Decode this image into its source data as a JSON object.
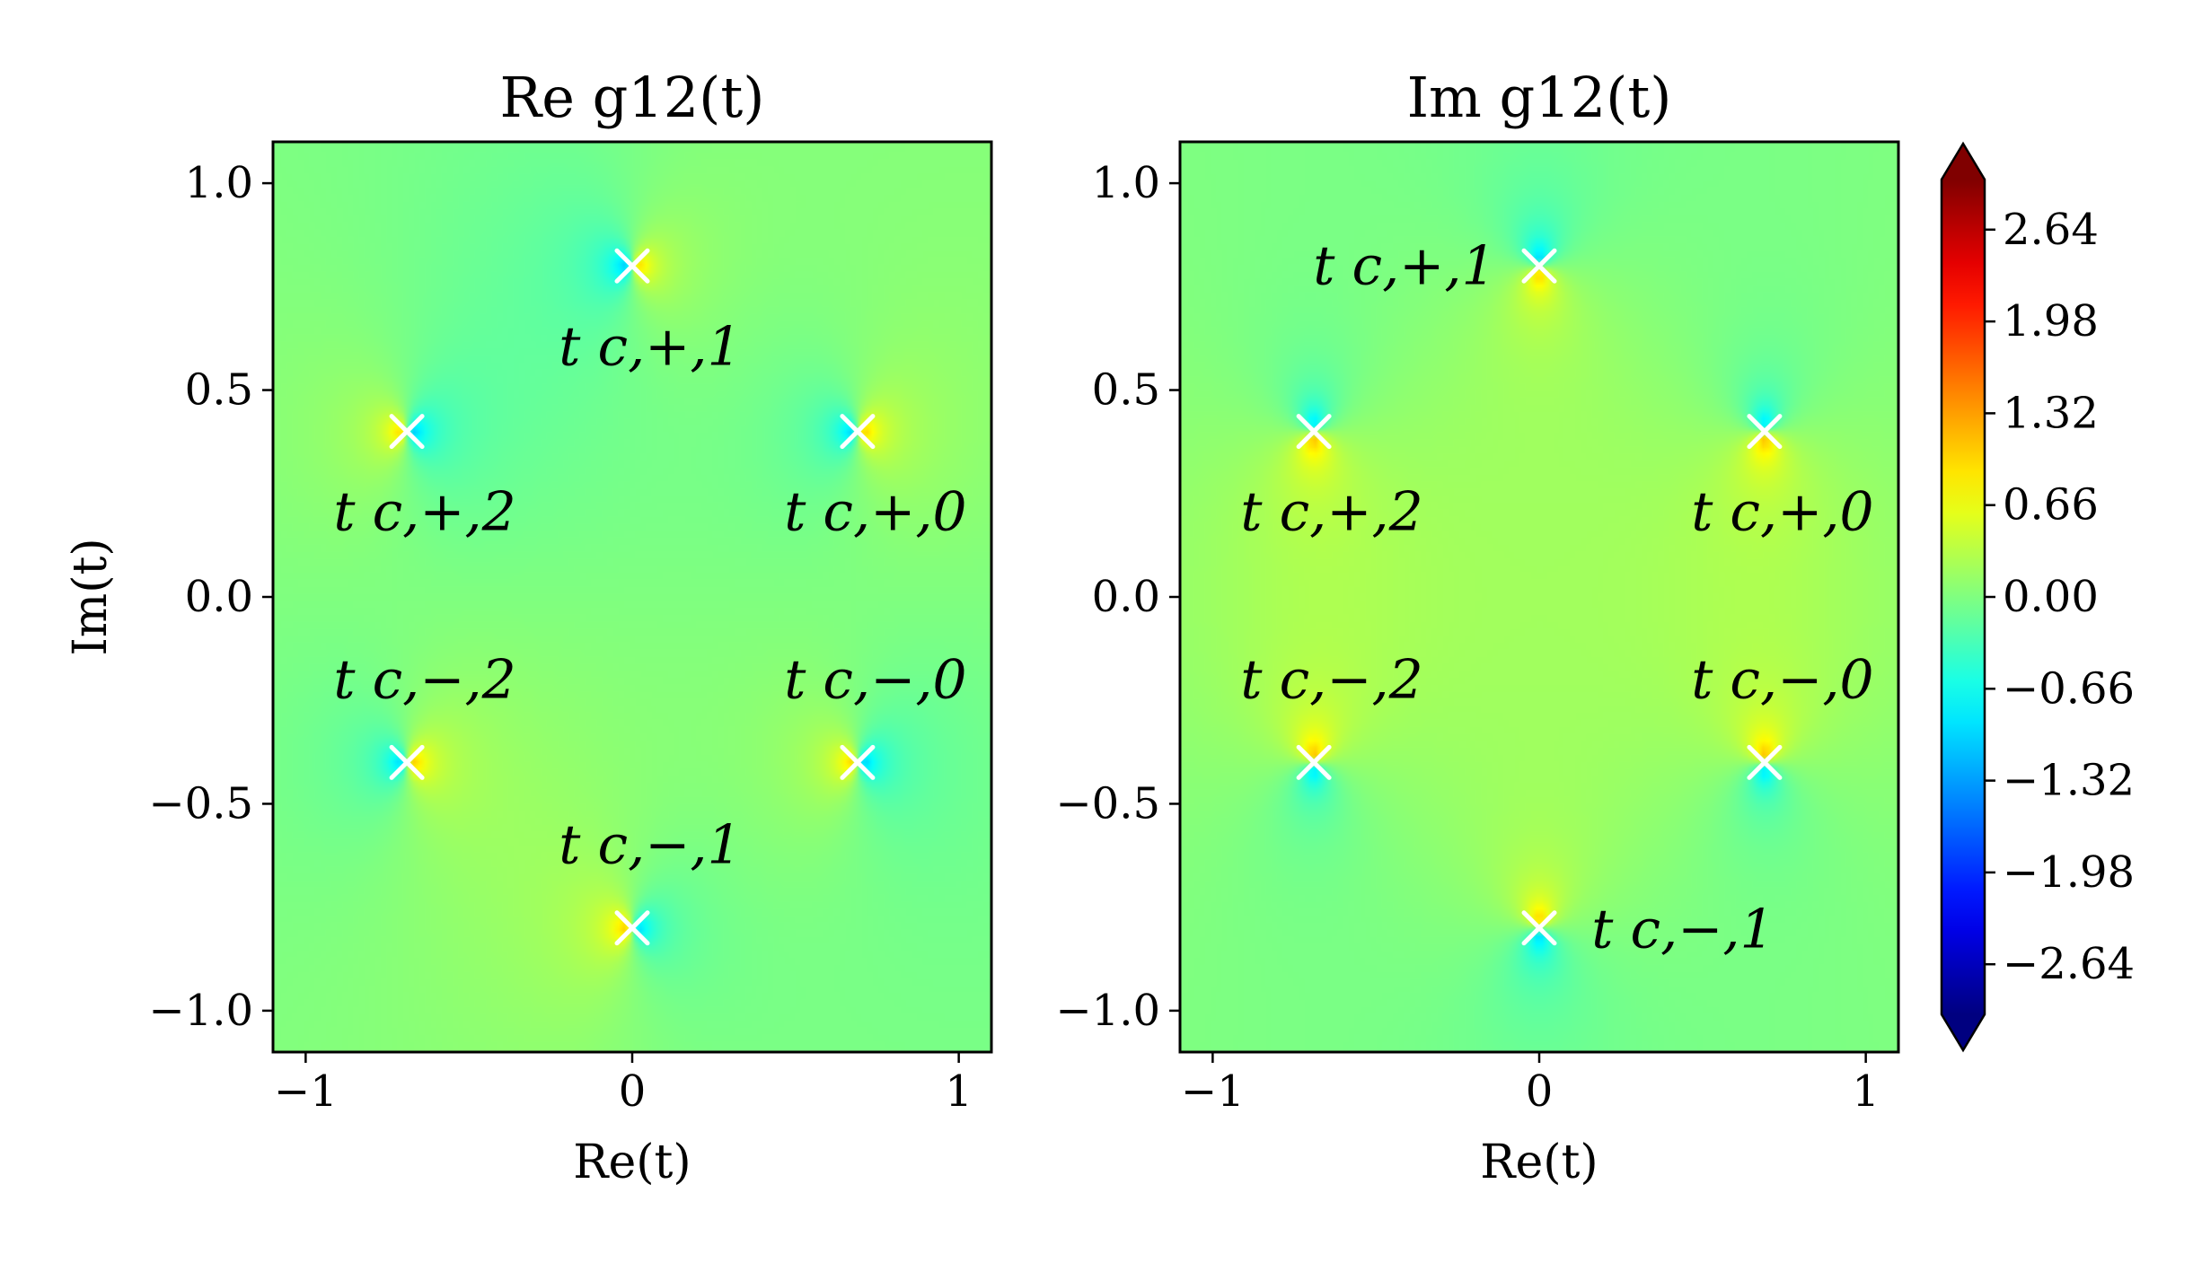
{
  "chart_data": [
    {
      "type": "heatmap",
      "title": "Re g12(t)",
      "xlabel": "Re(t)",
      "ylabel": "Im(t)",
      "xlim": [
        -1.1,
        1.1
      ],
      "ylim": [
        -1.1,
        1.1
      ],
      "xticks": [
        -1,
        0,
        1
      ],
      "xtick_labels": [
        "−1",
        "0",
        "1"
      ],
      "yticks": [
        1.0,
        0.5,
        0.0,
        -0.5,
        -1.0
      ],
      "ytick_labels": [
        "1.0",
        "0.5",
        "0.0",
        "−0.5",
        "−1.0"
      ],
      "component": "real",
      "poles": [
        {
          "label": "t c,+,1",
          "x": 0.0,
          "y": 0.8,
          "label_pos": "below"
        },
        {
          "label": "t c,+,2",
          "x": -0.69,
          "y": 0.4,
          "label_pos": "below"
        },
        {
          "label": "t c,+,0",
          "x": 0.69,
          "y": 0.4,
          "label_pos": "below"
        },
        {
          "label": "t c,−,2",
          "x": -0.69,
          "y": -0.4,
          "label_pos": "above"
        },
        {
          "label": "t c,−,0",
          "x": 0.69,
          "y": -0.4,
          "label_pos": "above"
        },
        {
          "label": "t c,−,1",
          "x": 0.0,
          "y": -0.8,
          "label_pos": "above"
        }
      ]
    },
    {
      "type": "heatmap",
      "title": "Im g12(t)",
      "xlabel": "Re(t)",
      "ylabel": "",
      "xlim": [
        -1.1,
        1.1
      ],
      "ylim": [
        -1.1,
        1.1
      ],
      "xticks": [
        -1,
        0,
        1
      ],
      "xtick_labels": [
        "−1",
        "0",
        "1"
      ],
      "yticks": [
        1.0,
        0.5,
        0.0,
        -0.5,
        -1.0
      ],
      "ytick_labels": [
        "1.0",
        "0.5",
        "0.0",
        "−0.5",
        "−1.0"
      ],
      "component": "imag",
      "poles": [
        {
          "label": "t c,+,1",
          "x": 0.0,
          "y": 0.8,
          "label_pos": "left"
        },
        {
          "label": "t c,+,2",
          "x": -0.69,
          "y": 0.4,
          "label_pos": "below"
        },
        {
          "label": "t c,+,0",
          "x": 0.69,
          "y": 0.4,
          "label_pos": "below"
        },
        {
          "label": "t c,−,2",
          "x": -0.69,
          "y": -0.4,
          "label_pos": "above"
        },
        {
          "label": "t c,−,0",
          "x": 0.69,
          "y": -0.4,
          "label_pos": "above"
        },
        {
          "label": "t c,−,1",
          "x": 0.0,
          "y": -0.8,
          "label_pos": "right"
        }
      ]
    }
  ],
  "colorbar": {
    "colormap": "jet",
    "range": [
      -3.0,
      3.0
    ],
    "extend": "both",
    "ticks": [
      2.64,
      1.98,
      1.32,
      0.66,
      0.0,
      -0.66,
      -1.32,
      -1.98,
      -2.64
    ],
    "tick_labels": [
      "2.64",
      "1.98",
      "1.32",
      "0.66",
      "0.00",
      "−0.66",
      "−1.32",
      "−1.98",
      "−2.64"
    ]
  },
  "marker": {
    "shape": "x",
    "color": "#ffffff"
  }
}
